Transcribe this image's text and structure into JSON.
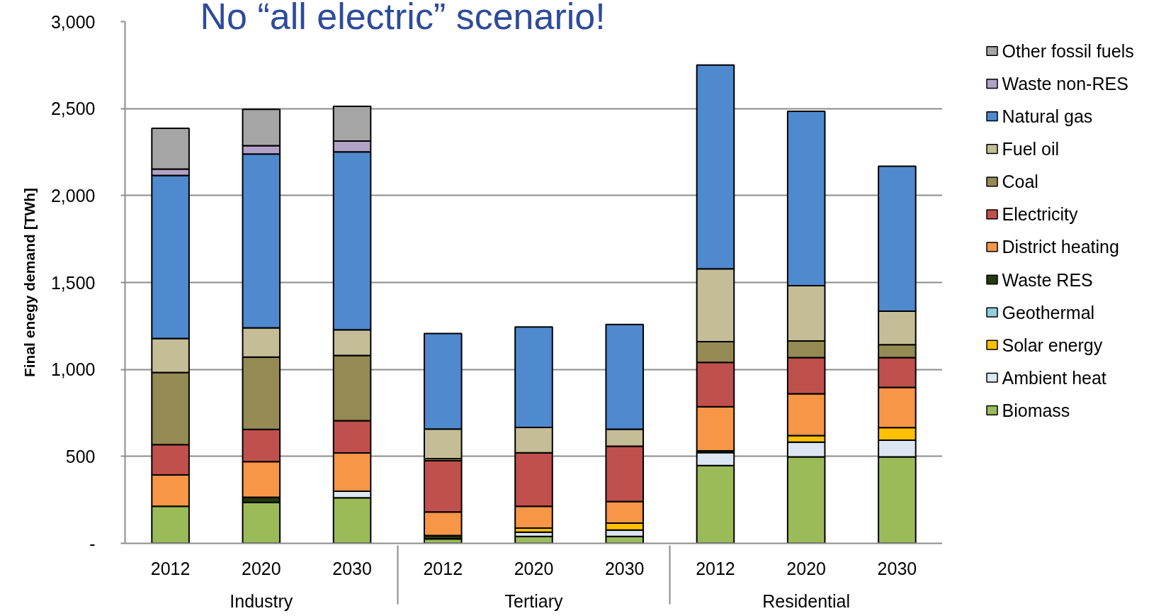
{
  "chart_data": {
    "type": "bar",
    "title": "No “all electric” scenario!",
    "ylabel": "Final enegy demand [TWh]",
    "categories": [
      "2012",
      "2020",
      "2030",
      "2012",
      "2020",
      "2030",
      "2012",
      "2020",
      "2030"
    ],
    "annotations": [
      "Industry",
      "Tertiary",
      "Residential"
    ],
    "stacked": true,
    "series": [
      {
        "name": "Biomass",
        "color": "#9bbb59",
        "values": [
          213,
          235,
          262,
          25,
          40,
          40,
          447,
          497,
          497
        ]
      },
      {
        "name": "Ambient heat",
        "color": "#dce6f2",
        "values": [
          null,
          null,
          38,
          null,
          24,
          36,
          75,
          85,
          96
        ]
      },
      {
        "name": "Solar energy",
        "color": "#ffc000",
        "values": [
          null,
          null,
          null,
          null,
          24,
          40,
          null,
          38,
          72
        ]
      },
      {
        "name": "Geothermal",
        "color": "#92cddc",
        "values": [
          null,
          null,
          null,
          null,
          null,
          null,
          null,
          null,
          null
        ]
      },
      {
        "name": "Waste RES",
        "color": "#243a12",
        "values": [
          null,
          30,
          null,
          20,
          null,
          null,
          10,
          null,
          null
        ]
      },
      {
        "name": "District heating",
        "color": "#f79646",
        "values": [
          180,
          205,
          220,
          135,
          125,
          124,
          254,
          240,
          232
        ]
      },
      {
        "name": "Electricity",
        "color": "#c0504d",
        "values": [
          175,
          185,
          185,
          295,
          308,
          318,
          254,
          208,
          171
        ]
      },
      {
        "name": "Coal",
        "color": "#948a54",
        "values": [
          414,
          416,
          375,
          12,
          null,
          null,
          120,
          96,
          74
        ]
      },
      {
        "name": "Fuel oil",
        "color": "#c4bd97",
        "values": [
          196,
          168,
          148,
          170,
          145,
          98,
          418,
          318,
          193
        ]
      },
      {
        "name": "Natural gas",
        "color": "#4f89ce",
        "values": [
          937,
          1000,
          1023,
          550,
          578,
          603,
          1172,
          1002,
          833
        ]
      },
      {
        "name": "Waste non-RES",
        "color": "#b3a2c7",
        "values": [
          37,
          48,
          62,
          null,
          null,
          null,
          null,
          null,
          null
        ]
      },
      {
        "name": "Other fossil fuels",
        "color": "#a5a5a5",
        "values": [
          235,
          209,
          200,
          null,
          null,
          null,
          null,
          null,
          null
        ]
      }
    ],
    "ylim": [
      0,
      3000
    ],
    "yticks": [
      {
        "value": 0,
        "label": "-"
      },
      500,
      {
        "value": 1000,
        "label": "1,000"
      },
      {
        "value": 1500,
        "label": "1,500"
      },
      {
        "value": 2000,
        "label": "2,000"
      },
      {
        "value": 2500,
        "label": "2,500"
      },
      {
        "value": 3000,
        "label": "3,000"
      }
    ],
    "grid": "y",
    "legend": "right"
  }
}
